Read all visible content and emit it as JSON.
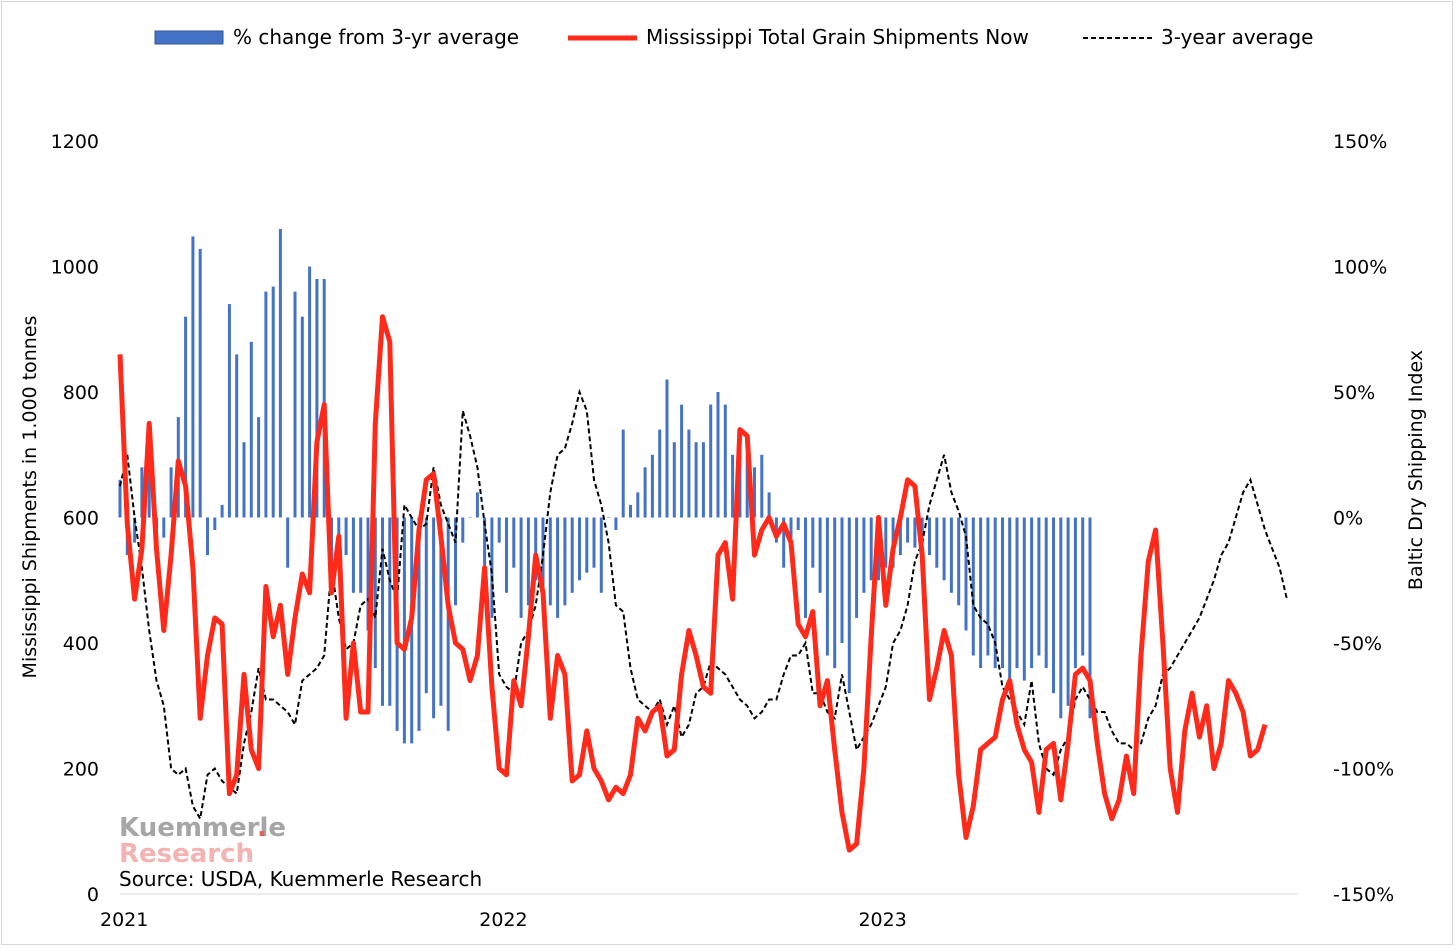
{
  "legend": {
    "bars_label": "% change from 3-yr average",
    "now_label": "Mississippi Total Grain Shipments Now",
    "avg_label": "3-year average"
  },
  "source": "Source: USDA, Kuemmerle Research",
  "logo": {
    "line1": "Kuemmerle",
    "line2": "Research",
    "dot": "."
  },
  "colors": {
    "bars": "#4472c4",
    "now": "#ff2a1a",
    "avg": "#000000"
  },
  "chart_data": {
    "type": "line",
    "x_unit": "week index from start of 2021",
    "xlabel": "",
    "ylabel": "Mississippi Shipments in 1.000 tonnes",
    "y2label": "Baltic Dry Shipping Index",
    "ylim": [
      0,
      1200
    ],
    "y2lim": [
      -150,
      150
    ],
    "yticks": [
      "0",
      "200",
      "400",
      "600",
      "800",
      "1000",
      "1200"
    ],
    "y2ticks": [
      "-150%",
      "-100%",
      "-50%",
      "0%",
      "50%",
      "100%",
      "150%"
    ],
    "xticks": [
      {
        "label": "2021",
        "x": 0
      },
      {
        "label": "2022",
        "x": 52
      },
      {
        "label": "2023",
        "x": 104
      }
    ],
    "legend_position": "top",
    "grid": false,
    "series": [
      {
        "name": "% change from 3-yr average",
        "type": "bar",
        "axis": "right",
        "values": [
          15,
          -15,
          -10,
          20,
          25,
          -5,
          -8,
          20,
          40,
          80,
          112,
          107,
          -15,
          -5,
          5,
          85,
          65,
          30,
          70,
          40,
          90,
          92,
          115,
          -20,
          90,
          80,
          100,
          95,
          95,
          -23,
          -10,
          -15,
          -30,
          -30,
          -45,
          -60,
          -75,
          -75,
          -85,
          -90,
          -90,
          -85,
          -70,
          -80,
          -75,
          -85,
          -35,
          -10,
          0,
          10,
          -25,
          -40,
          -10,
          -30,
          -20,
          -40,
          -35,
          -25,
          -30,
          -35,
          -40,
          -35,
          -30,
          -25,
          -22,
          -20,
          -30,
          0,
          -5,
          35,
          5,
          10,
          20,
          25,
          35,
          55,
          30,
          45,
          35,
          30,
          30,
          45,
          50,
          45,
          25,
          35,
          25,
          20,
          25,
          10,
          -10,
          -20,
          -15,
          -5,
          -40,
          -20,
          -30,
          -55,
          -60,
          -50,
          -70,
          -40,
          -30,
          -25,
          -25,
          -20,
          -20,
          -15,
          -10,
          -12,
          -10,
          -15,
          -20,
          -25,
          -30,
          -35,
          -45,
          -55,
          -60,
          -55,
          -60,
          -60,
          -65,
          -60,
          -65,
          -60,
          -55,
          -60,
          -70,
          -80,
          -75,
          -60,
          -55,
          -80
        ]
      },
      {
        "name": "Mississippi Total Grain Shipments Now",
        "type": "line",
        "axis": "left",
        "values": [
          860,
          590,
          470,
          550,
          750,
          550,
          420,
          540,
          690,
          650,
          520,
          280,
          380,
          440,
          430,
          160,
          190,
          350,
          230,
          200,
          490,
          410,
          460,
          350,
          440,
          510,
          480,
          720,
          780,
          480,
          570,
          280,
          400,
          290,
          290,
          750,
          920,
          880,
          400,
          390,
          440,
          580,
          660,
          670,
          570,
          460,
          400,
          390,
          340,
          380,
          520,
          330,
          200,
          190,
          340,
          300,
          410,
          540,
          480,
          280,
          380,
          350,
          180,
          190,
          260,
          200,
          180,
          150,
          170,
          160,
          190,
          280,
          260,
          290,
          300,
          220,
          230,
          350,
          420,
          380,
          330,
          320,
          540,
          560,
          470,
          740,
          730,
          540,
          580,
          600,
          570,
          590,
          560,
          430,
          410,
          450,
          300,
          340,
          230,
          130,
          70,
          80,
          200,
          410,
          600,
          460,
          550,
          600,
          660,
          650,
          540,
          310,
          360,
          420,
          380,
          190,
          90,
          140,
          230,
          240,
          250,
          310,
          340,
          270,
          230,
          210,
          130,
          230,
          240,
          150,
          240,
          350,
          360,
          340,
          240,
          160,
          120,
          150,
          220,
          160,
          380,
          530,
          580,
          400,
          200,
          130,
          260,
          320,
          250,
          300,
          200,
          240,
          340,
          320,
          290,
          220,
          230,
          270
        ],
        "note": "line series digitized from a wiggly weekly line; values approximate"
      },
      {
        "name": "3-year average",
        "type": "line",
        "axis": "left",
        "dash": true,
        "values": [
          650,
          700,
          600,
          520,
          420,
          340,
          300,
          200,
          190,
          200,
          140,
          120,
          190,
          200,
          180,
          170,
          160,
          240,
          290,
          360,
          310,
          310,
          300,
          290,
          270,
          340,
          350,
          360,
          380,
          520,
          440,
          390,
          400,
          460,
          470,
          440,
          550,
          500,
          470,
          620,
          600,
          580,
          590,
          680,
          620,
          590,
          560,
          770,
          730,
          680,
          590,
          510,
          350,
          330,
          320,
          400,
          420,
          460,
          540,
          640,
          700,
          710,
          750,
          800,
          770,
          660,
          620,
          560,
          460,
          450,
          360,
          310,
          300,
          290,
          310,
          270,
          300,
          250,
          270,
          320,
          330,
          370,
          360,
          350,
          330,
          310,
          300,
          280,
          290,
          310,
          310,
          350,
          380,
          380,
          400,
          320,
          320,
          290,
          280,
          350,
          290,
          230,
          250,
          270,
          300,
          330,
          400,
          420,
          460,
          530,
          560,
          620,
          660,
          700,
          640,
          610,
          570,
          460,
          440,
          430,
          400,
          330,
          310,
          290,
          270,
          340,
          240,
          200,
          190,
          230,
          250,
          310,
          330,
          310,
          290,
          290,
          260,
          240,
          240,
          230,
          240,
          280,
          300,
          350,
          360,
          380,
          400,
          420,
          440,
          470,
          500,
          540,
          560,
          600,
          640,
          660,
          620,
          580,
          550,
          520,
          470
        ]
      }
    ]
  }
}
